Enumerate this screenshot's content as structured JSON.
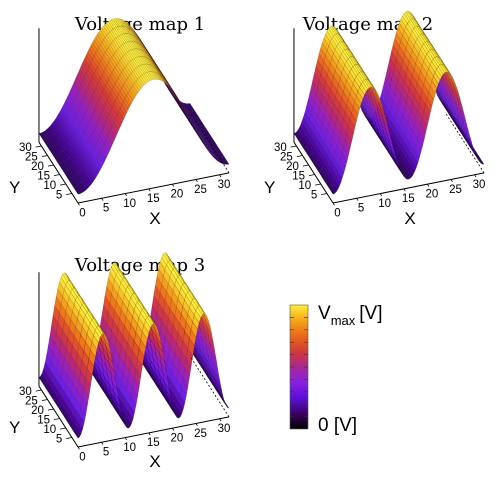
{
  "chart_data": [
    {
      "type": "surface",
      "title": "Voltage map 1",
      "xlabel": "X",
      "ylabel": "Y",
      "xlim": [
        0,
        32
      ],
      "ylim": [
        0,
        32
      ],
      "xticks": [
        "0",
        "5",
        "10",
        "15",
        "20",
        "25",
        "30"
      ],
      "yticks": [
        "5",
        "10",
        "15",
        "20",
        "25",
        "30"
      ],
      "periods_along_x": 1,
      "z_profile": "0.5 + 0.5*cos(2*pi*(x-16)/32) across X, constant along Y"
    },
    {
      "type": "surface",
      "title": "Voltage map 2",
      "xlabel": "X",
      "ylabel": "Y",
      "xlim": [
        0,
        32
      ],
      "ylim": [
        0,
        32
      ],
      "xticks": [
        "0",
        "5",
        "10",
        "15",
        "20",
        "25",
        "30"
      ],
      "yticks": [
        "5",
        "10",
        "15",
        "20",
        "25",
        "30"
      ],
      "periods_along_x": 2,
      "z_profile": "0.5 + 0.5*cos(2*pi*2*(x-8)/32) across X, constant along Y"
    },
    {
      "type": "surface",
      "title": "Voltage map 3",
      "xlabel": "X",
      "ylabel": "Y",
      "xlim": [
        0,
        32
      ],
      "ylim": [
        0,
        32
      ],
      "xticks": [
        "0",
        "5",
        "10",
        "15",
        "20",
        "25",
        "30"
      ],
      "yticks": [
        "5",
        "10",
        "15",
        "20",
        "25",
        "30"
      ],
      "periods_along_x": 3,
      "z_profile": "0.5 + 0.5*cos(2*pi*3*(x-5.33)/32) across X, constant along Y"
    }
  ],
  "colorbar": {
    "max_label": "V",
    "max_sub": "max",
    "max_unit": "[V]",
    "min_label": "0 [V]",
    "colormap": "gnuplot-pm3d (black-purple-red-orange-yellow)"
  }
}
